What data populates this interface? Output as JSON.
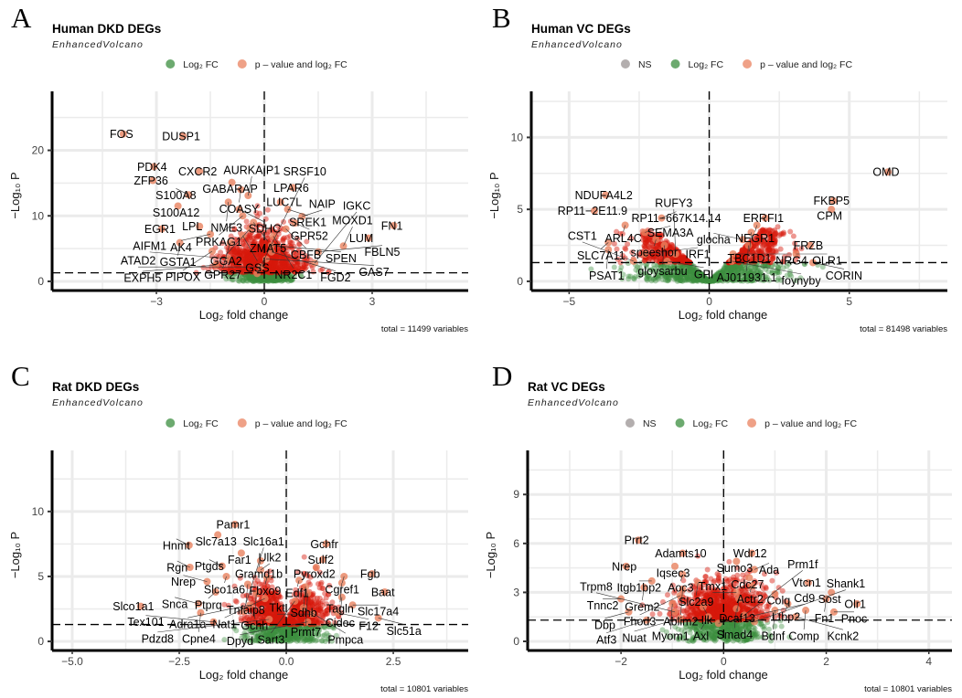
{
  "colors": {
    "ns": "#9a9393",
    "log2fc": "#3b8e3f",
    "sig": "#e9825f",
    "sig_dense": "#d7190c"
  },
  "chart_data": [
    {
      "type": "scatter",
      "panel_letter": "A",
      "title": "Human DKD DEGs",
      "subtitle": "EnhancedVolcano",
      "legend": [
        "Log₂ FC",
        "p – value and log₂ FC"
      ],
      "legend_keys": [
        "log2fc",
        "sig"
      ],
      "legend_placement": "top",
      "xlabel": "Log₂ fold change",
      "ylabel": "−Log₁₀ P",
      "xticks": [
        -3,
        0,
        3
      ],
      "yticks": [
        0,
        10,
        20
      ],
      "xlim": [
        -5.9,
        5.67
      ],
      "ylim": [
        -1.4,
        29
      ],
      "grid": true,
      "p_cutoff_line": 1.3,
      "fc_cutoff_line": 0,
      "caption": "total = 11499 variables",
      "labeled_points": [
        {
          "gene": "FOS",
          "x": -3.92,
          "y": 22.5
        },
        {
          "gene": "DUSP1",
          "x": -2.26,
          "y": 22.2
        },
        {
          "gene": "PDK4",
          "x": -3.07,
          "y": 17.5
        },
        {
          "gene": "CXCR2",
          "x": -1.8,
          "y": 16.8
        },
        {
          "gene": "ZFP36",
          "x": -3.1,
          "y": 15.4
        },
        {
          "gene": "GABARAP",
          "x": -0.9,
          "y": 15.1
        },
        {
          "gene": "COASY",
          "x": -0.65,
          "y": 14.0
        },
        {
          "gene": "LPAR6",
          "x": 0.8,
          "y": 14.3
        },
        {
          "gene": "S100A8",
          "x": -2.1,
          "y": 13.2
        },
        {
          "gene": "AURKAIP1",
          "x": -0.45,
          "y": 13.1
        },
        {
          "gene": "NME3",
          "x": -1.0,
          "y": 12.1
        },
        {
          "gene": "LUC7L",
          "x": 0.45,
          "y": 12.1
        },
        {
          "gene": "S100A12",
          "x": -2.4,
          "y": 11.5
        },
        {
          "gene": "SDHC",
          "x": -0.7,
          "y": 11.0
        },
        {
          "gene": "SREK1",
          "x": 0.65,
          "y": 11.0
        },
        {
          "gene": "PRKAG1",
          "x": -0.6,
          "y": 10.0
        },
        {
          "gene": "NAIP",
          "x": 1.05,
          "y": 9.9
        },
        {
          "gene": "ZMAT5",
          "x": -0.3,
          "y": 9.0
        },
        {
          "gene": "GPR52",
          "x": 0.85,
          "y": 8.9
        },
        {
          "gene": "EGR1",
          "x": -2.85,
          "y": 8.0
        },
        {
          "gene": "LPL",
          "x": -1.8,
          "y": 8.4
        },
        {
          "gene": "FN1",
          "x": 3.6,
          "y": 8.5
        },
        {
          "gene": "GGA2",
          "x": -0.4,
          "y": 8.0
        },
        {
          "gene": "CBFB",
          "x": 0.6,
          "y": 8.0
        },
        {
          "gene": "AK4",
          "x": -1.5,
          "y": 7.2
        },
        {
          "gene": "GSS",
          "x": -0.6,
          "y": 7.0
        },
        {
          "gene": "NR2C1",
          "x": 0.25,
          "y": 6.9
        },
        {
          "gene": "LUM",
          "x": 2.9,
          "y": 6.6
        },
        {
          "gene": "GSTA1",
          "x": -2.35,
          "y": 5.9
        },
        {
          "gene": "GPR27",
          "x": -0.95,
          "y": 5.9
        },
        {
          "gene": "SPEN",
          "x": 0.2,
          "y": 5.5
        },
        {
          "gene": "MOXD1",
          "x": 2.2,
          "y": 5.4
        },
        {
          "gene": "PIPOX",
          "x": -1.45,
          "y": 4.6
        },
        {
          "gene": "FGD2",
          "x": 0.2,
          "y": 4.5
        },
        {
          "gene": "FBLN5",
          "x": 1.5,
          "y": 4.5
        },
        {
          "gene": "AIFM1",
          "x": -1.0,
          "y": 3.5
        },
        {
          "gene": "GAS7",
          "x": 0.05,
          "y": 3.4
        },
        {
          "gene": "IGKC",
          "x": 1.4,
          "y": 2.8
        },
        {
          "gene": "EXPH5",
          "x": -1.35,
          "y": 2.5
        },
        {
          "gene": "ATAD2",
          "x": -0.1,
          "y": 2.2
        },
        {
          "gene": "SRSF10",
          "x": -0.2,
          "y": 1.2
        }
      ]
    },
    {
      "type": "scatter",
      "panel_letter": "B",
      "title": "Human VC DEGs",
      "subtitle": "EnhancedVolcano",
      "legend": [
        "NS",
        "Log₂ FC",
        "p – value and log₂ FC"
      ],
      "legend_keys": [
        "ns",
        "log2fc",
        "sig"
      ],
      "legend_placement": "top",
      "xlabel": "Log₂ fold change",
      "ylabel": "−Log₁₀ P",
      "xticks": [
        -5,
        0,
        5
      ],
      "yticks": [
        0,
        5,
        10
      ],
      "xlim": [
        -6.35,
        8.5
      ],
      "ylim": [
        -0.64,
        13.2
      ],
      "grid": true,
      "p_cutoff_line": 1.3,
      "fc_cutoff_line": 0,
      "caption": "total = 81498 variables",
      "labeled_points": [
        {
          "gene": "OMD",
          "x": 6.38,
          "y": 7.6
        },
        {
          "gene": "FKBP5",
          "x": 4.43,
          "y": 5.6
        },
        {
          "gene": "CPM",
          "x": 4.36,
          "y": 5.0
        },
        {
          "gene": "NDUFA4L2",
          "x": -3.7,
          "y": 6.0
        },
        {
          "gene": "RP11−2E11.9",
          "x": -4.1,
          "y": 4.9
        },
        {
          "gene": "RP11−667K14.14",
          "x": -1.7,
          "y": 4.4
        },
        {
          "gene": "ARL4C",
          "x": -3.0,
          "y": 3.9
        },
        {
          "gene": "SEMA3A",
          "x": -2.3,
          "y": 3.4
        },
        {
          "gene": "speeshor",
          "x": -1.9,
          "y": 2.9
        },
        {
          "gene": "SLC7A11",
          "x": -3.6,
          "y": 2.7
        },
        {
          "gene": "gloysarbu",
          "x": -1.6,
          "y": 2.5
        },
        {
          "gene": "AJ011931.1",
          "x": 1.4,
          "y": 2.5
        },
        {
          "gene": "ERRFI1",
          "x": 2.0,
          "y": 4.4
        },
        {
          "gene": "NEGR1",
          "x": 1.7,
          "y": 3.9
        },
        {
          "gene": "TBC1D1",
          "x": 1.5,
          "y": 3.4
        },
        {
          "gene": "glocha",
          "x": 1.2,
          "y": 2.9
        },
        {
          "gene": "FRZB",
          "x": 3.6,
          "y": 2.5
        },
        {
          "gene": "PSAT1",
          "x": -3.6,
          "y": 2.2
        },
        {
          "gene": "IRF1",
          "x": -2.3,
          "y": 1.9
        },
        {
          "gene": "RUFY3",
          "x": -1.2,
          "y": 1.9
        },
        {
          "gene": "NRG4",
          "x": 0.85,
          "y": 1.9
        },
        {
          "gene": "OLR1",
          "x": 3.1,
          "y": 1.9
        },
        {
          "gene": "CST1",
          "x": -2.7,
          "y": 1.4
        },
        {
          "gene": "GPI",
          "x": -1.5,
          "y": 1.4
        },
        {
          "gene": "foynyby",
          "x": 0.8,
          "y": 1.4
        },
        {
          "gene": "CORIN",
          "x": 3.7,
          "y": 1.3
        }
      ]
    },
    {
      "type": "scatter",
      "panel_letter": "C",
      "title": "Rat DKD DEGs",
      "subtitle": "EnhancedVolcano",
      "legend": [
        "Log₂ FC",
        "p – value and log₂ FC"
      ],
      "legend_keys": [
        "log2fc",
        "sig"
      ],
      "legend_placement": "top",
      "xlabel": "Log₂ fold change",
      "ylabel": "−Log₁₀ P",
      "xticks": [
        -5.0,
        -2.5,
        0.0,
        2.5
      ],
      "xtick_labels": [
        "−5.0",
        "−2.5",
        "0.0",
        "2.5"
      ],
      "yticks": [
        0,
        5,
        10
      ],
      "xlim": [
        -5.47,
        4.25
      ],
      "ylim": [
        -0.7,
        14.7
      ],
      "grid": true,
      "p_cutoff_line": 1.3,
      "fc_cutoff_line": 0,
      "caption": "total = 10801 variables",
      "labeled_points": [
        {
          "gene": "Pamr1",
          "x": -1.2,
          "y": 9.0
        },
        {
          "gene": "Slc7a13",
          "x": -1.6,
          "y": 8.2
        },
        {
          "gene": "Hnmt",
          "x": -2.27,
          "y": 7.4
        },
        {
          "gene": "Far1",
          "x": -1.05,
          "y": 6.8
        },
        {
          "gene": "Gramd1b",
          "x": -0.6,
          "y": 6.2
        },
        {
          "gene": "Gchfr",
          "x": 0.93,
          "y": 7.5
        },
        {
          "gene": "Sulf2",
          "x": 0.85,
          "y": 6.3
        },
        {
          "gene": "Pyroxd2",
          "x": 0.7,
          "y": 5.7
        },
        {
          "gene": "Rgn",
          "x": -2.25,
          "y": 5.7
        },
        {
          "gene": "Ptgds",
          "x": -1.5,
          "y": 5.8
        },
        {
          "gene": "Ulk2",
          "x": -0.6,
          "y": 5.5
        },
        {
          "gene": "Slco1a6",
          "x": -1.4,
          "y": 5.0
        },
        {
          "gene": "Fbxo9",
          "x": -0.45,
          "y": 4.9
        },
        {
          "gene": "Edf1",
          "x": 0.3,
          "y": 4.7
        },
        {
          "gene": "Cgref1",
          "x": 1.35,
          "y": 5.0
        },
        {
          "gene": "Fgb",
          "x": 2.0,
          "y": 5.2
        },
        {
          "gene": "Tagln",
          "x": 1.3,
          "y": 4.5
        },
        {
          "gene": "Nrep",
          "x": -1.85,
          "y": 4.6
        },
        {
          "gene": "Tnfaip8",
          "x": -0.9,
          "y": 4.4
        },
        {
          "gene": "Sdhb",
          "x": 0.45,
          "y": 4.2
        },
        {
          "gene": "Baat",
          "x": 2.3,
          "y": 3.8
        },
        {
          "gene": "Ptprq",
          "x": -1.65,
          "y": 3.8
        },
        {
          "gene": "Gchh",
          "x": -0.7,
          "y": 3.7
        },
        {
          "gene": "Prmt7",
          "x": 0.5,
          "y": 3.7
        },
        {
          "gene": "Cidec",
          "x": 1.3,
          "y": 3.4
        },
        {
          "gene": "Nat1",
          "x": -0.5,
          "y": 3.3
        },
        {
          "gene": "Sart3",
          "x": 0.2,
          "y": 3.1
        },
        {
          "gene": "Slco1a1",
          "x": -3.4,
          "y": 2.7
        },
        {
          "gene": "Snca",
          "x": -2.05,
          "y": 2.9
        },
        {
          "gene": "Adra1a",
          "x": -0.85,
          "y": 2.8
        },
        {
          "gene": "Pmpca",
          "x": 0.4,
          "y": 2.6
        },
        {
          "gene": "Slc17a4",
          "x": 1.55,
          "y": 2.8
        },
        {
          "gene": "Cpne4",
          "x": -2.0,
          "y": 2.2
        },
        {
          "gene": "Slc16a1",
          "x": -1.0,
          "y": 2.3
        },
        {
          "gene": "Tkt",
          "x": 0.6,
          "y": 2.1
        },
        {
          "gene": "F12",
          "x": 1.2,
          "y": 2.2
        },
        {
          "gene": "Slc51a",
          "x": 2.15,
          "y": 1.8
        },
        {
          "gene": "Tex101",
          "x": -1.7,
          "y": 1.5
        },
        {
          "gene": "Pdzd8",
          "x": -0.4,
          "y": 1.7
        },
        {
          "gene": "Dpyd",
          "x": 0.5,
          "y": 1.5
        }
      ]
    },
    {
      "type": "scatter",
      "panel_letter": "D",
      "title": "Rat VC DEGs",
      "subtitle": "EnhancedVolcano",
      "legend": [
        "NS",
        "Log₂ FC",
        "p – value and log₂ FC"
      ],
      "legend_keys": [
        "ns",
        "log2fc",
        "sig"
      ],
      "legend_placement": "top",
      "xlabel": "Log₂ fold change",
      "ylabel": "−Log₁₀ P",
      "xticks": [
        -2,
        0,
        2,
        4
      ],
      "yticks": [
        0,
        3,
        6,
        9
      ],
      "xlim": [
        -3.82,
        4.45
      ],
      "ylim": [
        -0.56,
        11.7
      ],
      "grid": true,
      "p_cutoff_line": 1.3,
      "fc_cutoff_line": 0,
      "caption": "total = 10801 variables",
      "labeled_points": [
        {
          "gene": "Prrt2",
          "x": -1.66,
          "y": 6.2
        },
        {
          "gene": "Adamts10",
          "x": -0.8,
          "y": 5.4
        },
        {
          "gene": "Wdr12",
          "x": 0.55,
          "y": 5.4
        },
        {
          "gene": "Sumo3",
          "x": 0.25,
          "y": 4.9
        },
        {
          "gene": "Nrep",
          "x": -1.9,
          "y": 4.6
        },
        {
          "gene": "Iqsec3",
          "x": -0.95,
          "y": 4.6
        },
        {
          "gene": "Ada",
          "x": 0.6,
          "y": 4.4
        },
        {
          "gene": "Aoc3",
          "x": -0.8,
          "y": 4.1
        },
        {
          "gene": "Cdc27",
          "x": 0.5,
          "y": 3.9
        },
        {
          "gene": "Itgb1bp2",
          "x": -1.4,
          "y": 3.7
        },
        {
          "gene": "Slc2a9",
          "x": -0.5,
          "y": 3.6
        },
        {
          "gene": "Actr2",
          "x": 0.55,
          "y": 3.4
        },
        {
          "gene": "Vtcn1",
          "x": 1.65,
          "y": 3.6
        },
        {
          "gene": "Grem2",
          "x": -1.55,
          "y": 3.3
        },
        {
          "gene": "Ablim2",
          "x": -0.8,
          "y": 3.2
        },
        {
          "gene": "Tmx1",
          "x": 0.25,
          "y": 3.0
        },
        {
          "gene": "Colq",
          "x": 1.0,
          "y": 2.9
        },
        {
          "gene": "Sost",
          "x": 2.1,
          "y": 3.0
        },
        {
          "gene": "Tnnc2",
          "x": -2.0,
          "y": 2.6
        },
        {
          "gene": "Fhod3",
          "x": -0.85,
          "y": 2.8
        },
        {
          "gene": "Fn1",
          "x": 2.0,
          "y": 2.6
        },
        {
          "gene": "Dcaf13",
          "x": 0.3,
          "y": 2.6
        },
        {
          "gene": "Myom1",
          "x": -1.0,
          "y": 2.3
        },
        {
          "gene": "Ltbp2",
          "x": 1.25,
          "y": 2.3
        },
        {
          "gene": "Olr1",
          "x": 2.6,
          "y": 2.3
        },
        {
          "gene": "Ilk",
          "x": -0.4,
          "y": 2.1
        },
        {
          "gene": "Smad4",
          "x": 0.25,
          "y": 2.0
        },
        {
          "gene": "Dbp",
          "x": -1.85,
          "y": 1.8
        },
        {
          "gene": "Trpm8",
          "x": -0.95,
          "y": 1.8
        },
        {
          "gene": "Bdnf",
          "x": 1.0,
          "y": 1.9
        },
        {
          "gene": "Comp",
          "x": 1.6,
          "y": 1.9
        },
        {
          "gene": "Pnoc",
          "x": 2.15,
          "y": 1.8
        },
        {
          "gene": "Axl",
          "x": -0.3,
          "y": 1.5
        },
        {
          "gene": "Prm1f",
          "x": 0.4,
          "y": 1.6
        },
        {
          "gene": "Kcnk2",
          "x": 1.4,
          "y": 1.5
        },
        {
          "gene": "Atf3",
          "x": -1.5,
          "y": 1.3
        },
        {
          "gene": "Nuat",
          "x": -0.85,
          "y": 1.4
        },
        {
          "gene": "Cd9",
          "x": -0.1,
          "y": 1.1
        },
        {
          "gene": "Shank1",
          "x": 0.6,
          "y": 1.2
        }
      ]
    }
  ]
}
